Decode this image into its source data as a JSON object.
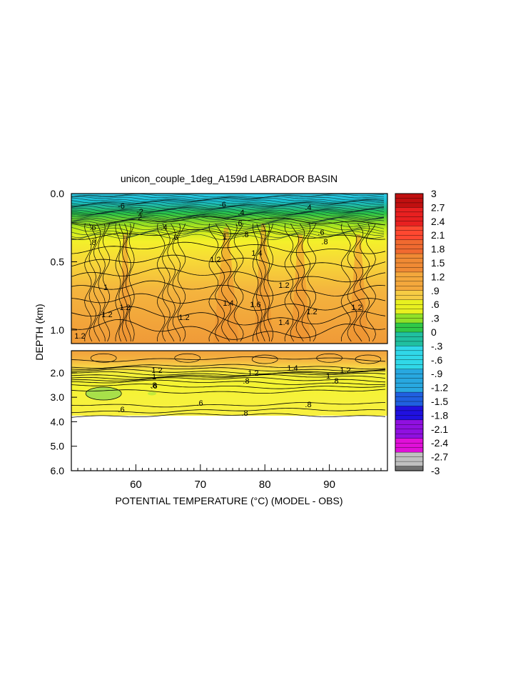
{
  "chart_data": {
    "type": "heatmap",
    "title": "unicon_couple_1deg_A159d LABRADOR BASIN",
    "xlabel": "POTENTIAL TEMPERATURE (°C) (MODEL - OBS)",
    "ylabel": "DEPTH (km)",
    "x_ticks": [
      "60",
      "70",
      "80",
      "90"
    ],
    "xlim": [
      50,
      99
    ],
    "panels": [
      {
        "name": "upper",
        "ylim": [
          0.0,
          1.1
        ],
        "y_ticks": [
          "0.0",
          "0.5",
          "1.0"
        ]
      },
      {
        "name": "lower",
        "ylim": [
          1.1,
          6.0
        ],
        "y_ticks": [
          "2.0",
          "3.0",
          "4.0",
          "5.0",
          "6.0"
        ]
      }
    ],
    "colorbar": {
      "labels": [
        "3",
        "2.7",
        "2.4",
        "2.1",
        "1.8",
        "1.5",
        "1.2",
        ".9",
        ".6",
        ".3",
        "0",
        "-.3",
        "-.6",
        "-.9",
        "-1.2",
        "-1.5",
        "-1.8",
        "-2.1",
        "-2.4",
        "-2.7",
        "-3"
      ],
      "range": [
        -3,
        3
      ]
    },
    "contour_labels_upper": [
      "-6",
      "-2",
      "2",
      ".4",
      ".6",
      ".8",
      "1",
      "1.2",
      "1.4",
      "1.6"
    ],
    "contour_labels_lower": [
      "1.2",
      "1.4",
      "1",
      ".8",
      ".6"
    ],
    "valid_depth_max_km": 3.85
  }
}
